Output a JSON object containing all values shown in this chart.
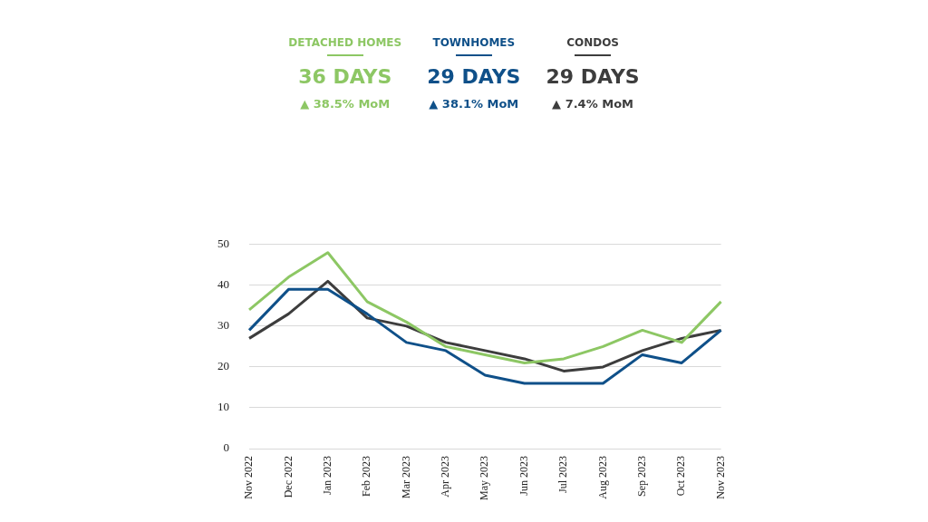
{
  "chart_data": {
    "type": "line",
    "categories": [
      "Nov 2022",
      "Dec 2022",
      "Jan 2023",
      "Feb 2023",
      "Mar 2023",
      "Apr 2023",
      "May 2023",
      "Jun 2023",
      "Jul 2023",
      "Aug 2023",
      "Sep 2023",
      "Oct 2023",
      "Nov 2023"
    ],
    "series": [
      {
        "name": "DETACHED HOMES",
        "color": "#8dc764",
        "values": [
          34,
          42,
          48,
          36,
          31,
          25,
          23,
          21,
          22,
          25,
          29,
          26,
          36
        ]
      },
      {
        "name": "TOWNHOMES",
        "color": "#0f5089",
        "values": [
          29,
          39,
          39,
          33,
          26,
          24,
          18,
          16,
          16,
          16,
          23,
          21,
          29
        ]
      },
      {
        "name": "CONDOS",
        "color": "#3d3d3d",
        "values": [
          27,
          33,
          41,
          32,
          30,
          26,
          24,
          22,
          19,
          20,
          24,
          27,
          29
        ]
      }
    ],
    "annotations": [
      "36 DAYS",
      "▲ 38.5% MoM",
      "29 DAYS",
      "▲ 38.1% MoM",
      "29 DAYS",
      "▲ 7.4% MoM"
    ],
    "ylim": [
      0,
      50
    ],
    "yticks": [
      0,
      10,
      20,
      30,
      40,
      50
    ],
    "grid": "y",
    "legend": "top",
    "marker": "none",
    "line_style": "solid"
  }
}
